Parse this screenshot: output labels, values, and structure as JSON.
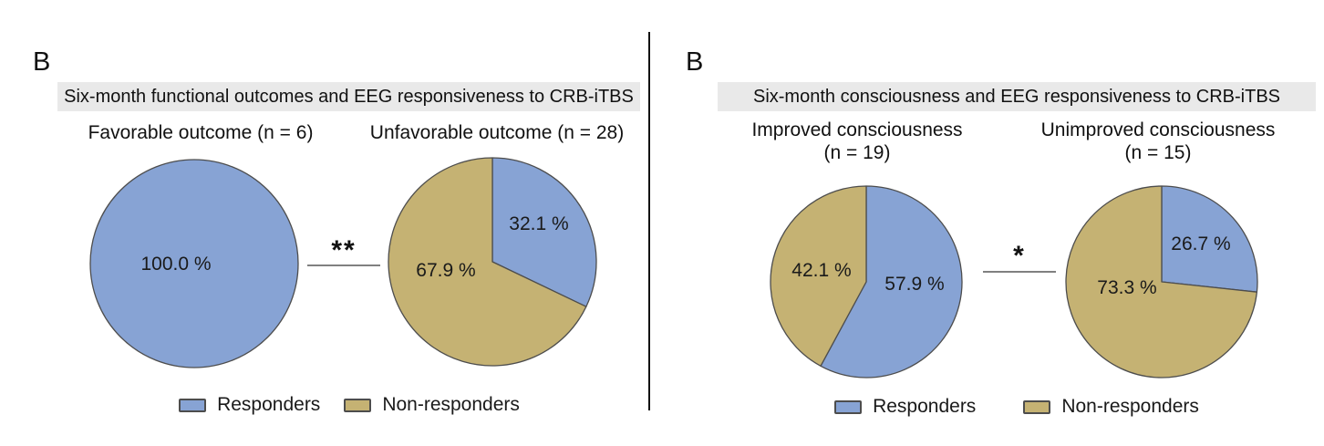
{
  "styles": {
    "responders_color": "#87A3D4",
    "non_responders_color": "#C5B273",
    "header_bg": "#E9E9E9",
    "pie_outline": "#4D4D4D",
    "sig_line_color": "#808080"
  },
  "panels": [
    {
      "label": "B",
      "header": "Six-month functional outcomes and EEG responsiveness to CRB-iTBS",
      "significance": "**",
      "legend": [
        {
          "name": "Responders"
        },
        {
          "name": "Non-responders"
        }
      ]
    },
    {
      "label": "B",
      "header": "Six-month consciousness and EEG responsiveness to CRB-iTBS",
      "significance": "*",
      "legend": [
        {
          "name": "Responders"
        },
        {
          "name": "Non-responders"
        }
      ]
    }
  ],
  "chart_data": [
    {
      "type": "pie",
      "title_lines": [
        "Favorable outcome (n = 6)"
      ],
      "n": 6,
      "start_angle": "12-oclock",
      "direction": "clockwise",
      "slices": [
        {
          "name": "Responders",
          "value": 100.0,
          "label": "100.0 %",
          "color": "#87A3D4"
        }
      ]
    },
    {
      "type": "pie",
      "title_lines": [
        "Unfavorable outcome (n = 28)"
      ],
      "n": 28,
      "start_angle": "12-oclock",
      "direction": "clockwise",
      "slices": [
        {
          "name": "Responders",
          "value": 32.1,
          "label": "32.1 %",
          "color": "#87A3D4"
        },
        {
          "name": "Non-responders",
          "value": 67.9,
          "label": "67.9 %",
          "color": "#C5B273"
        }
      ]
    },
    {
      "type": "pie",
      "title_lines": [
        "Improved consciousness",
        "(n = 19)"
      ],
      "n": 19,
      "start_angle": "12-oclock",
      "direction": "clockwise",
      "slices": [
        {
          "name": "Responders",
          "value": 57.9,
          "label": "57.9 %",
          "color": "#87A3D4"
        },
        {
          "name": "Non-responders",
          "value": 42.1,
          "label": "42.1 %",
          "color": "#C5B273"
        }
      ]
    },
    {
      "type": "pie",
      "title_lines": [
        "Unimproved consciousness",
        "(n = 15)"
      ],
      "n": 15,
      "start_angle": "12-oclock",
      "direction": "clockwise",
      "slices": [
        {
          "name": "Responders",
          "value": 26.7,
          "label": "26.7 %",
          "color": "#87A3D4"
        },
        {
          "name": "Non-responders",
          "value": 73.3,
          "label": "73.3 %",
          "color": "#C5B273"
        }
      ]
    }
  ]
}
